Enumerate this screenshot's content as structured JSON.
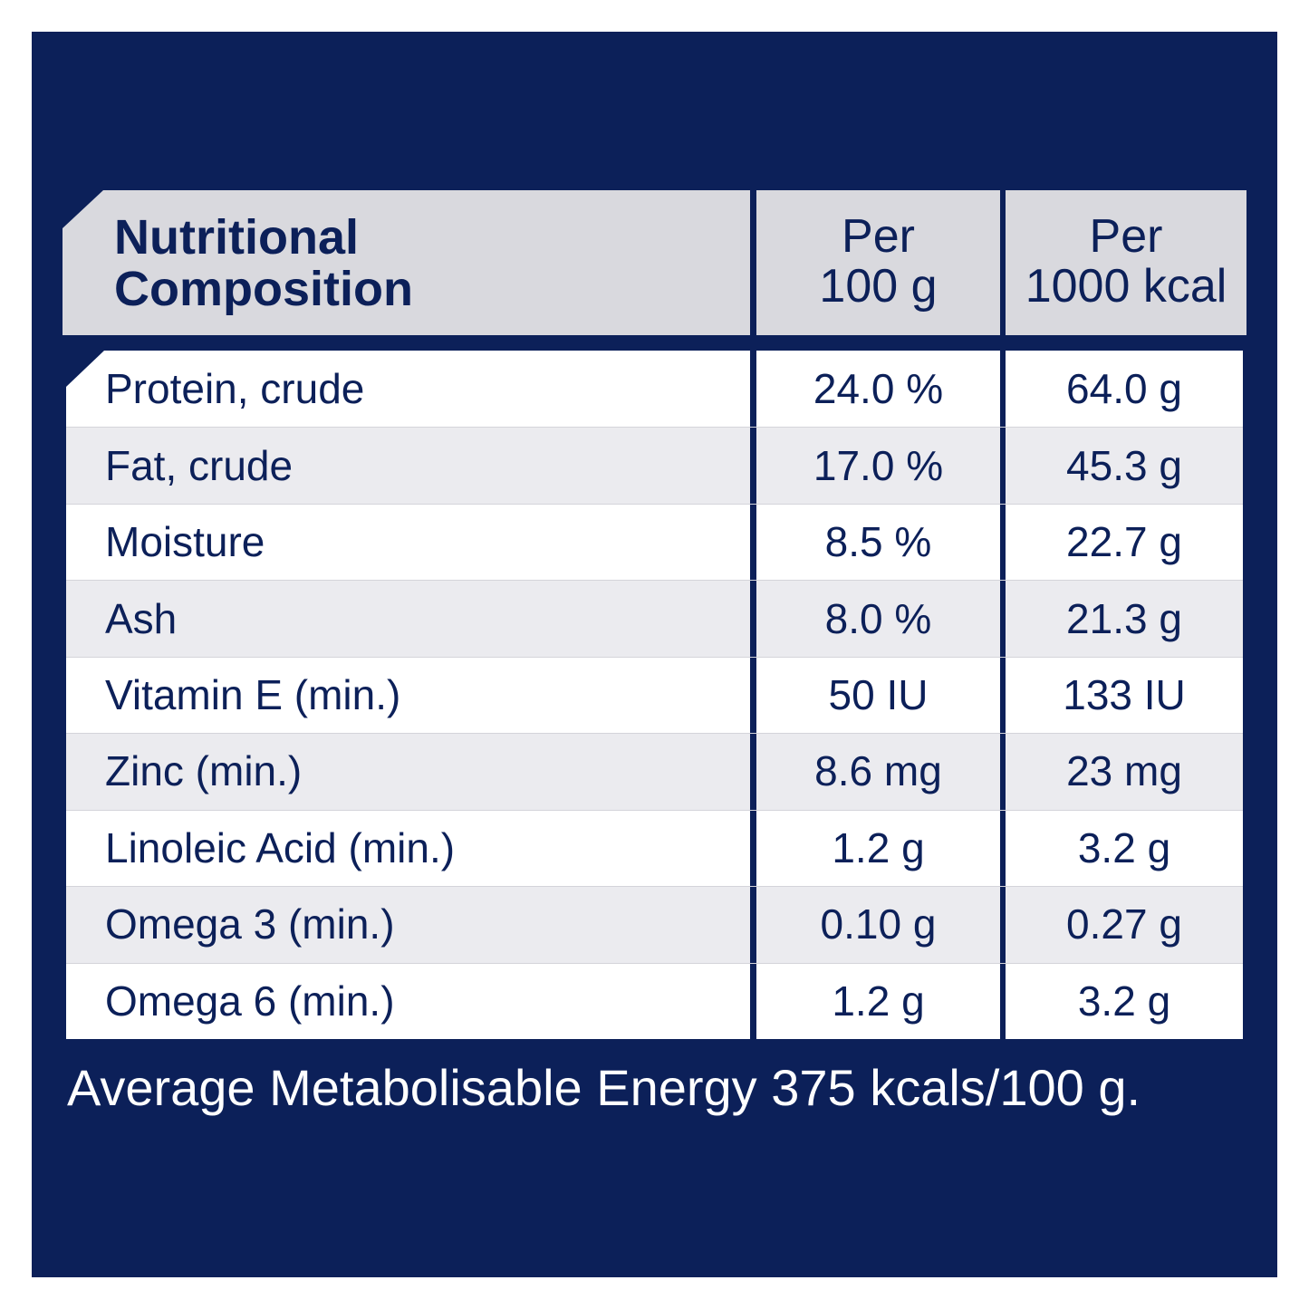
{
  "header": {
    "title_line1": "Nutritional",
    "title_line2": "Composition",
    "col1_line1": "Per",
    "col1_line2": "100 g",
    "col2_line1": "Per",
    "col2_line2": "1000 kcal"
  },
  "rows": [
    {
      "name": "Protein, crude",
      "per100g": "24.0 %",
      "per1000kcal": "64.0 g"
    },
    {
      "name": "Fat, crude",
      "per100g": "17.0 %",
      "per1000kcal": "45.3 g"
    },
    {
      "name": "Moisture",
      "per100g": "8.5 %",
      "per1000kcal": "22.7 g"
    },
    {
      "name": "Ash",
      "per100g": "8.0 %",
      "per1000kcal": "21.3 g"
    },
    {
      "name": "Vitamin E (min.)",
      "per100g": "50 IU",
      "per1000kcal": "133 IU"
    },
    {
      "name": "Zinc (min.)",
      "per100g": "8.6 mg",
      "per1000kcal": "23 mg"
    },
    {
      "name": "Linoleic Acid (min.)",
      "per100g": "1.2 g",
      "per1000kcal": "3.2 g"
    },
    {
      "name": "Omega 3 (min.)",
      "per100g": "0.10 g",
      "per1000kcal": "0.27 g"
    },
    {
      "name": "Omega 6 (min.)",
      "per100g": "1.2 g",
      "per1000kcal": "3.2 g"
    }
  ],
  "footer": "Average Metabolisable Energy 375 kcals/100 g.",
  "colors": {
    "navy": "#0c2059",
    "header_bg": "#d9d9de",
    "row_alt": "#ebebef"
  }
}
